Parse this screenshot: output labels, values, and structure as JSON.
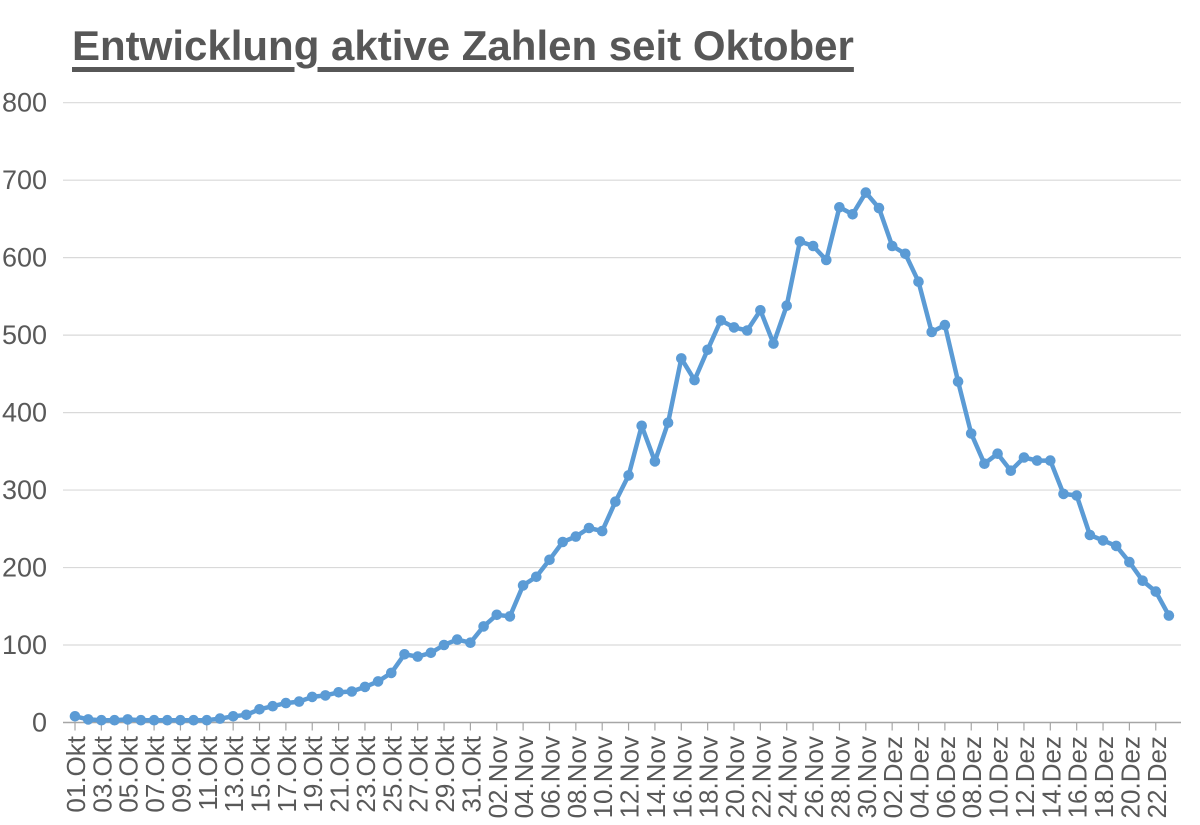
{
  "chart_data": {
    "type": "line",
    "title": "Entwicklung aktive Zahlen seit Oktober",
    "xlabel": "",
    "ylabel": "",
    "legend": "none",
    "grid": "horizontal",
    "ylim": [
      0,
      800
    ],
    "ytick_step": 100,
    "x_label_interval": 2,
    "x": [
      "01.Okt",
      "02.Okt",
      "03.Okt",
      "04.Okt",
      "05.Okt",
      "06.Okt",
      "07.Okt",
      "08.Okt",
      "09.Okt",
      "10.Okt",
      "11.Okt",
      "12.Okt",
      "13.Okt",
      "14.Okt",
      "15.Okt",
      "16.Okt",
      "17.Okt",
      "18.Okt",
      "19.Okt",
      "20.Okt",
      "21.Okt",
      "22.Okt",
      "23.Okt",
      "24.Okt",
      "25.Okt",
      "26.Okt",
      "27.Okt",
      "28.Okt",
      "29.Okt",
      "30.Okt",
      "31.Okt",
      "01.Nov",
      "02.Nov",
      "03.Nov",
      "04.Nov",
      "05.Nov",
      "06.Nov",
      "07.Nov",
      "08.Nov",
      "09.Nov",
      "10.Nov",
      "11.Nov",
      "12.Nov",
      "13.Nov",
      "14.Nov",
      "15.Nov",
      "16.Nov",
      "17.Nov",
      "18.Nov",
      "19.Nov",
      "20.Nov",
      "21.Nov",
      "22.Nov",
      "23.Nov",
      "24.Nov",
      "25.Nov",
      "26.Nov",
      "27.Nov",
      "28.Nov",
      "29.Nov",
      "30.Nov",
      "01.Dez",
      "02.Dez",
      "03.Dez",
      "04.Dez",
      "05.Dez",
      "06.Dez",
      "07.Dez",
      "08.Dez",
      "09.Dez",
      "10.Dez",
      "11.Dez",
      "12.Dez",
      "13.Dez",
      "14.Dez",
      "15.Dez",
      "16.Dez",
      "17.Dez",
      "18.Dez",
      "19.Dez",
      "20.Dez",
      "21.Dez",
      "22.Dez",
      "23.Dez"
    ],
    "values": [
      8,
      4,
      3,
      3,
      4,
      3,
      3,
      3,
      3,
      3,
      3,
      5,
      8,
      10,
      17,
      21,
      25,
      27,
      33,
      35,
      39,
      40,
      46,
      53,
      64,
      88,
      85,
      90,
      100,
      107,
      103,
      124,
      139,
      137,
      177,
      188,
      210,
      233,
      240,
      251,
      247,
      285,
      319,
      383,
      337,
      387,
      470,
      442,
      481,
      519,
      510,
      506,
      532,
      489,
      538,
      621,
      615,
      597,
      665,
      656,
      684,
      664,
      615,
      605,
      569,
      504,
      513,
      440,
      373,
      334,
      347,
      325,
      342,
      338,
      338,
      295,
      293,
      242,
      235,
      228,
      207,
      183,
      169,
      138
    ],
    "line_color": "#5B9BD5",
    "marker_color": "#5B9BD5",
    "gridline_color": "#D9D9D9",
    "axis_color": "#A6A6A6",
    "tick_label_color": "#595959",
    "title_color": "#575757"
  }
}
